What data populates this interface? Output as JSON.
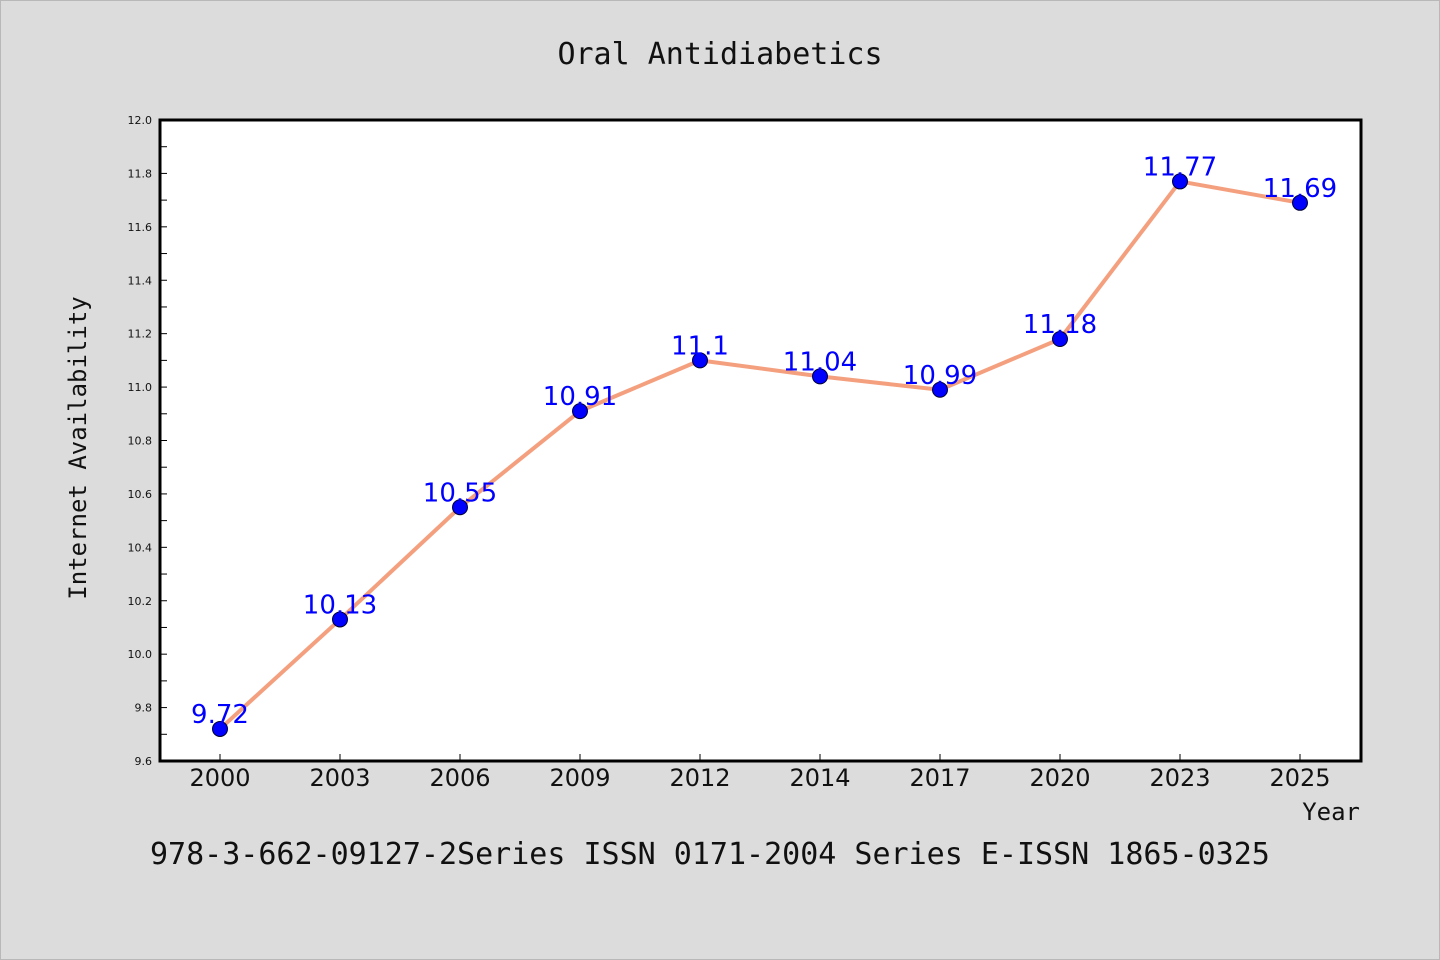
{
  "colors": {
    "background": "#dcdcdc",
    "plot_background": "#ffffff",
    "line": "#f4a07f",
    "marker": "#0000ff",
    "data_label": "#0000ff",
    "text": "#111111"
  },
  "footer": {
    "text": "978-3-662-09127-2Series ISSN 0171-2004 Series E-ISSN 1865-0325"
  },
  "chart_data": {
    "type": "line",
    "title": "Oral Antidiabetics",
    "xlabel": "Year",
    "ylabel": "Internet Availability",
    "categories": [
      "2000",
      "2003",
      "2006",
      "2009",
      "2012",
      "2014",
      "2017",
      "2020",
      "2023",
      "2025"
    ],
    "series": [
      {
        "values": [
          9.72,
          10.13,
          10.55,
          10.91,
          11.1,
          11.04,
          10.99,
          11.18,
          11.77,
          11.69
        ]
      }
    ],
    "data_labels": [
      "9.72",
      "10.13",
      "10.55",
      "10.91",
      "11.1",
      "11.04",
      "10.99",
      "11.18",
      "11.77",
      "11.69"
    ],
    "ylim": [
      9.6,
      12.0
    ],
    "yticks": [
      "9.6",
      "9.8",
      "10.0",
      "10.2",
      "10.4",
      "10.6",
      "10.8",
      "11.0",
      "11.2",
      "11.4",
      "11.6",
      "11.8",
      "12.0"
    ],
    "grid": false,
    "legend": "none"
  }
}
